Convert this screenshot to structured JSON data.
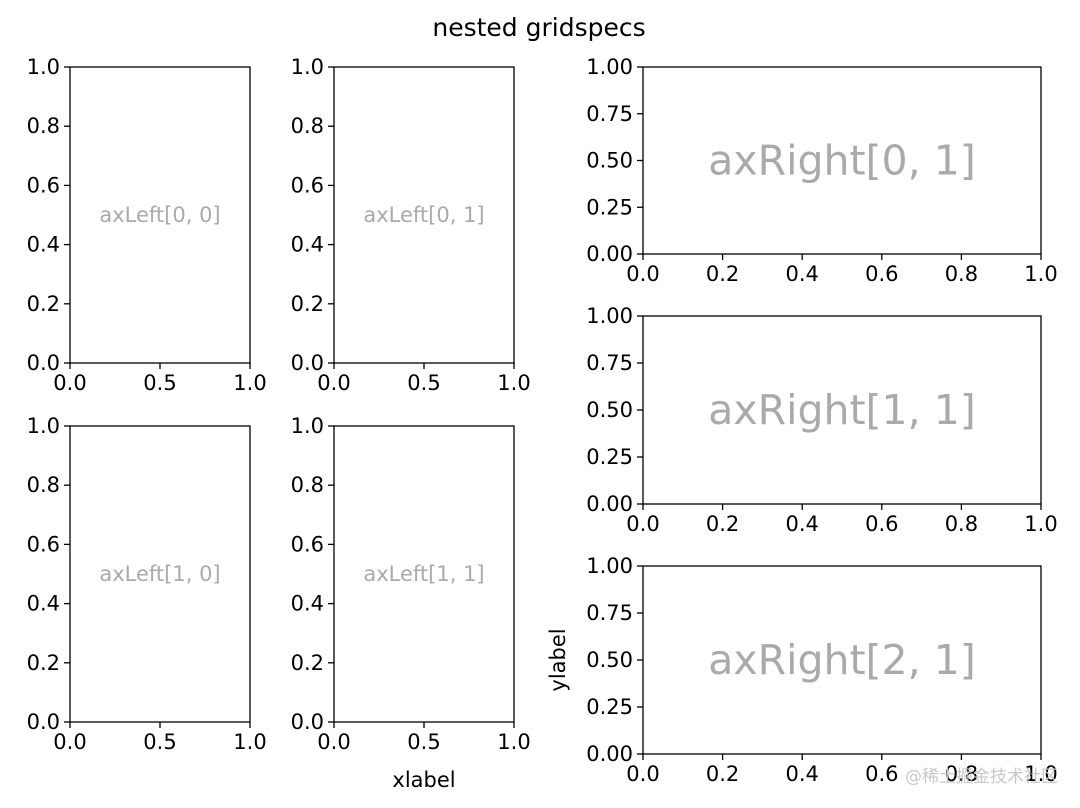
{
  "figure": {
    "title": "nested gridspecs",
    "watermark": "@稀土掘金技术社区"
  },
  "chart_data": [
    {
      "id": "left00",
      "type": "line",
      "annotation": "axLeft[0, 0]",
      "xlim": [
        0,
        1
      ],
      "ylim": [
        0,
        1
      ],
      "xticks": [
        "0.0",
        "0.5",
        "1.0"
      ],
      "yticks": [
        "0.0",
        "0.2",
        "0.4",
        "0.6",
        "0.8",
        "1.0"
      ],
      "xlabel": "",
      "ylabel": "",
      "grid": false,
      "series": []
    },
    {
      "id": "left01",
      "type": "line",
      "annotation": "axLeft[0, 1]",
      "xlim": [
        0,
        1
      ],
      "ylim": [
        0,
        1
      ],
      "xticks": [
        "0.0",
        "0.5",
        "1.0"
      ],
      "yticks": [
        "0.0",
        "0.2",
        "0.4",
        "0.6",
        "0.8",
        "1.0"
      ],
      "xlabel": "",
      "ylabel": "",
      "grid": false,
      "series": []
    },
    {
      "id": "left10",
      "type": "line",
      "annotation": "axLeft[1, 0]",
      "xlim": [
        0,
        1
      ],
      "ylim": [
        0,
        1
      ],
      "xticks": [
        "0.0",
        "0.5",
        "1.0"
      ],
      "yticks": [
        "0.0",
        "0.2",
        "0.4",
        "0.6",
        "0.8",
        "1.0"
      ],
      "xlabel": "",
      "ylabel": "",
      "grid": false,
      "series": []
    },
    {
      "id": "left11",
      "type": "line",
      "annotation": "axLeft[1, 1]",
      "xlim": [
        0,
        1
      ],
      "ylim": [
        0,
        1
      ],
      "xticks": [
        "0.0",
        "0.5",
        "1.0"
      ],
      "yticks": [
        "0.0",
        "0.2",
        "0.4",
        "0.6",
        "0.8",
        "1.0"
      ],
      "xlabel": "xlabel",
      "ylabel": "",
      "grid": false,
      "series": []
    },
    {
      "id": "right01",
      "type": "line",
      "annotation": "axRight[0, 1]",
      "xlim": [
        0,
        1
      ],
      "ylim": [
        0,
        1
      ],
      "xticks": [
        "0.0",
        "0.2",
        "0.4",
        "0.6",
        "0.8",
        "1.0"
      ],
      "yticks": [
        "0.00",
        "0.25",
        "0.50",
        "0.75",
        "1.00"
      ],
      "xlabel": "",
      "ylabel": "",
      "grid": false,
      "series": []
    },
    {
      "id": "right11",
      "type": "line",
      "annotation": "axRight[1, 1]",
      "xlim": [
        0,
        1
      ],
      "ylim": [
        0,
        1
      ],
      "xticks": [
        "0.0",
        "0.2",
        "0.4",
        "0.6",
        "0.8",
        "1.0"
      ],
      "yticks": [
        "0.00",
        "0.25",
        "0.50",
        "0.75",
        "1.00"
      ],
      "xlabel": "",
      "ylabel": "",
      "grid": false,
      "series": []
    },
    {
      "id": "right21",
      "type": "line",
      "annotation": "axRight[2, 1]",
      "xlim": [
        0,
        1
      ],
      "ylim": [
        0,
        1
      ],
      "xticks": [
        "0.0",
        "0.2",
        "0.4",
        "0.6",
        "0.8",
        "1.0"
      ],
      "yticks": [
        "0.00",
        "0.25",
        "0.50",
        "0.75",
        "1.00"
      ],
      "xlabel": "",
      "ylabel": "ylabel",
      "grid": false,
      "series": []
    }
  ]
}
